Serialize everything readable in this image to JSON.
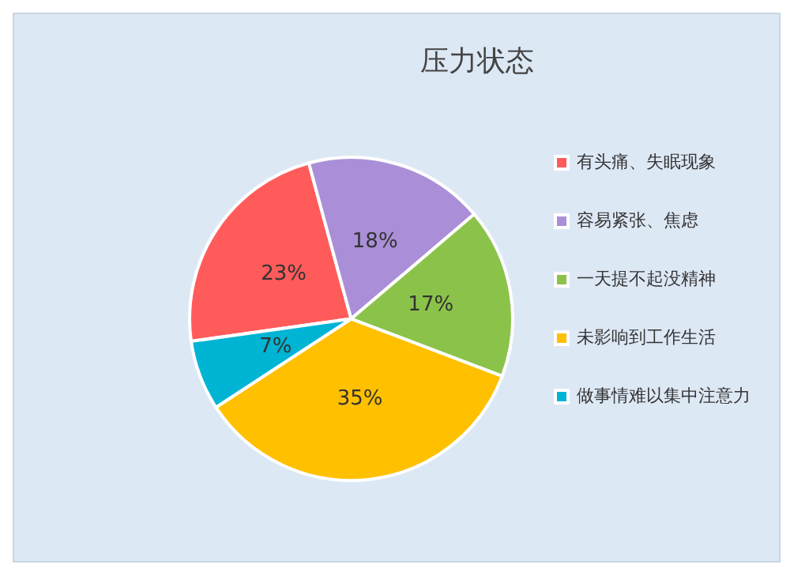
{
  "chart_data": {
    "type": "pie",
    "title": "压力状态",
    "categories": [
      "有头痛、失眠现象",
      "容易紧张、焦虑",
      "一天提不起没精神",
      "未影响到工作生活",
      "做事情难以集中注意力"
    ],
    "values": [
      23,
      18,
      17,
      35,
      7
    ],
    "colors": [
      "#ff5b5b",
      "#aa8fd8",
      "#8bc34a",
      "#ffc000",
      "#00b4d4"
    ],
    "value_labels": [
      "23%",
      "18%",
      "17%",
      "35%",
      "7%"
    ],
    "legend": "right"
  }
}
